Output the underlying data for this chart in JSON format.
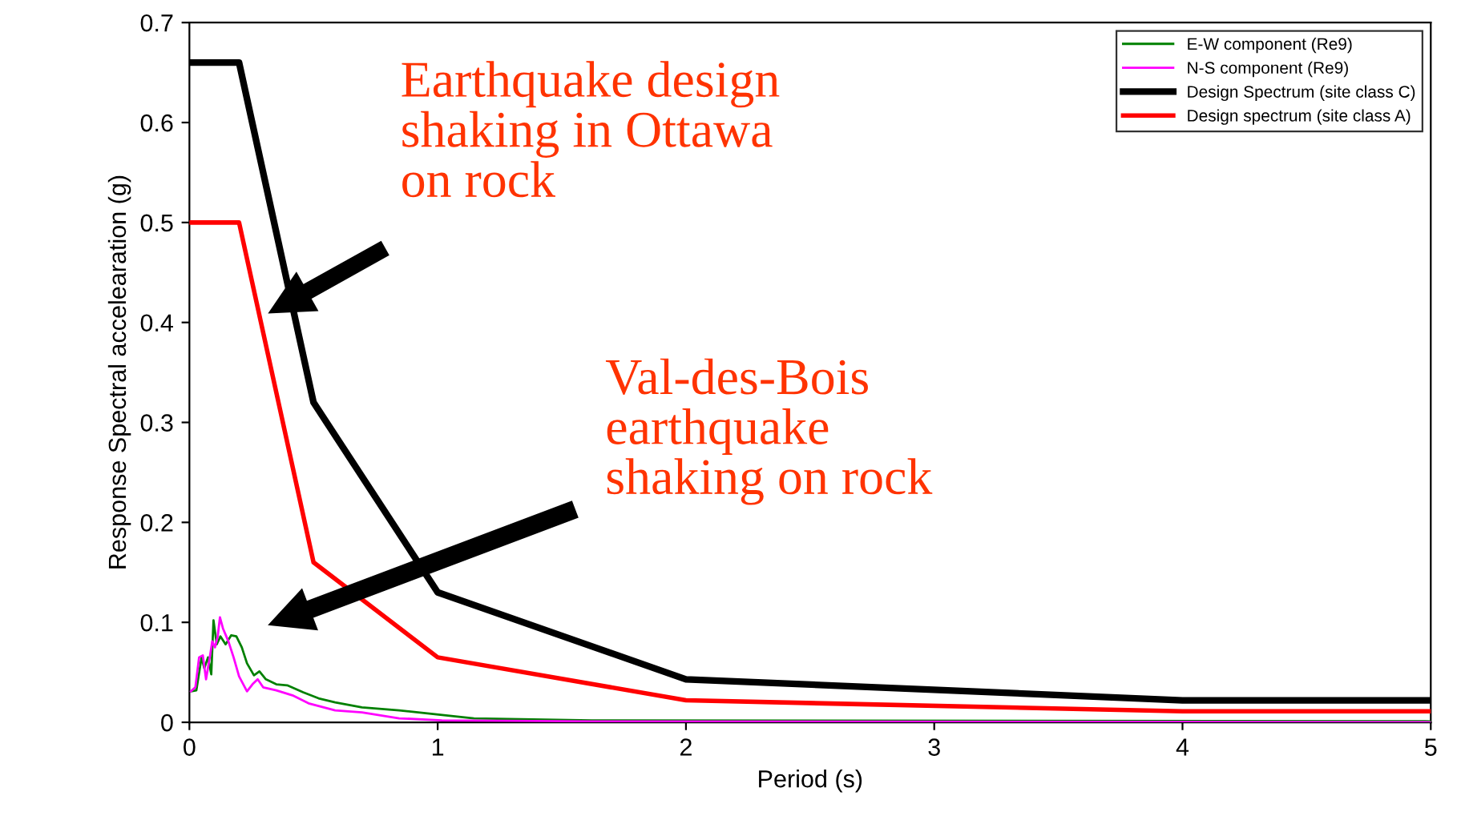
{
  "chart_data": {
    "type": "line",
    "xlabel": "Period (s)",
    "ylabel": "Response Spectral accelearation (g)",
    "xlim": [
      0,
      5
    ],
    "xticks": [
      0,
      1,
      2,
      3,
      4,
      5
    ],
    "ylim": [
      0,
      0.7
    ],
    "yticks": [
      0,
      0.1,
      0.2,
      0.3,
      0.4,
      0.5,
      0.6,
      0.7
    ],
    "grid": false,
    "legend": "top right",
    "marker": "none",
    "line_style": "solid",
    "series": [
      {
        "name": "E-W component (Re9)",
        "color": "#008000",
        "x": [
          0.006,
          0.028,
          0.049,
          0.06,
          0.075,
          0.088,
          0.097,
          0.11,
          0.125,
          0.146,
          0.168,
          0.189,
          0.211,
          0.232,
          0.26,
          0.282,
          0.308,
          0.35,
          0.394,
          0.458,
          0.52,
          0.587,
          0.695,
          0.845,
          0.996,
          1.146,
          1.62,
          5
        ],
        "values": [
          0.031,
          0.032,
          0.065,
          0.054,
          0.065,
          0.048,
          0.102,
          0.078,
          0.086,
          0.078,
          0.087,
          0.086,
          0.075,
          0.059,
          0.047,
          0.051,
          0.043,
          0.038,
          0.037,
          0.03,
          0.024,
          0.02,
          0.015,
          0.012,
          0.008,
          0.004,
          0.002,
          0.001
        ]
      },
      {
        "name": "N-S component (Re9)",
        "color": "#ff00ff",
        "x": [
          0.006,
          0.024,
          0.039,
          0.054,
          0.067,
          0.082,
          0.092,
          0.103,
          0.114,
          0.123,
          0.135,
          0.157,
          0.178,
          0.2,
          0.232,
          0.254,
          0.275,
          0.297,
          0.35,
          0.415,
          0.48,
          0.587,
          0.695,
          0.845,
          1.017,
          1.62,
          5
        ],
        "values": [
          0.031,
          0.035,
          0.065,
          0.067,
          0.043,
          0.065,
          0.081,
          0.075,
          0.086,
          0.105,
          0.094,
          0.081,
          0.065,
          0.046,
          0.031,
          0.038,
          0.043,
          0.035,
          0.032,
          0.027,
          0.019,
          0.012,
          0.01,
          0.004,
          0.002,
          0.001,
          0.0
        ]
      },
      {
        "name": "Design Spectrum (site class C)",
        "color": "#000000",
        "x": [
          0,
          0.2,
          0.5,
          1,
          2,
          4,
          5
        ],
        "values": [
          0.66,
          0.66,
          0.32,
          0.13,
          0.043,
          0.022,
          0.022
        ]
      },
      {
        "name": "Design spectrum (site class A)",
        "color": "#ff0000",
        "x": [
          0,
          0.2,
          0.5,
          1,
          2,
          4,
          5
        ],
        "values": [
          0.5,
          0.5,
          0.16,
          0.065,
          0.022,
          0.011,
          0.011
        ]
      }
    ],
    "annotations": [
      "Earthquake design\nshaking in Ottawa\non rock",
      "Val-des-Bois\nearthquake\nshaking on rock"
    ]
  }
}
